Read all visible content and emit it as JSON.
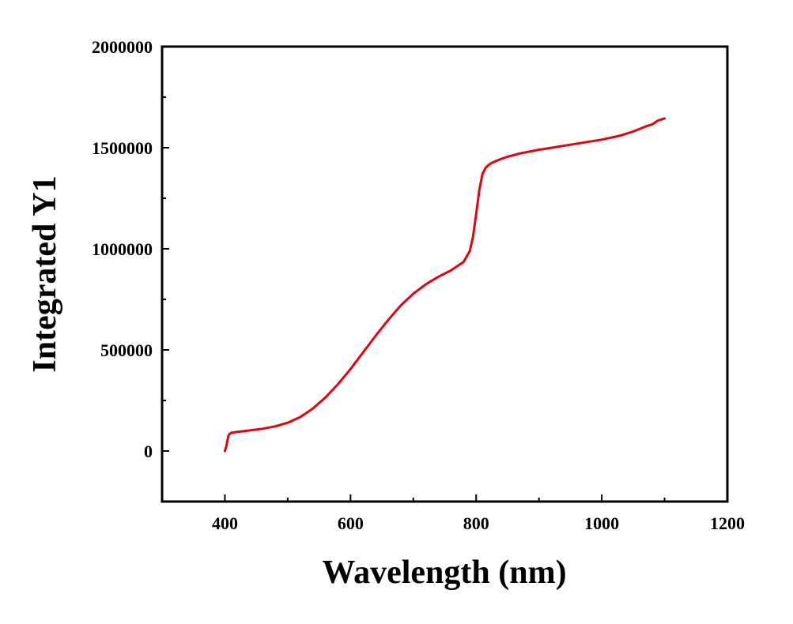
{
  "chart_data": {
    "type": "line",
    "title": "",
    "xlabel": "Wavelength (nm)",
    "ylabel": "Integrated Y1",
    "xlim": [
      300,
      1200
    ],
    "ylim": [
      -250000,
      2000000
    ],
    "x_ticks": [
      400,
      600,
      800,
      1000,
      1200
    ],
    "x_tick_labels": [
      "400",
      "600",
      "800",
      "1000",
      "1200"
    ],
    "x_minor_ticks": [
      300,
      500,
      700,
      900,
      1100
    ],
    "y_ticks": [
      0,
      500000,
      1000000,
      1500000,
      2000000
    ],
    "y_tick_labels": [
      "0",
      "500000",
      "1000000",
      "1500000",
      "2000000"
    ],
    "y_minor_ticks": [
      250000,
      750000,
      1250000,
      1750000
    ],
    "grid": false,
    "legend": "none",
    "series": [
      {
        "color": "#e8000b",
        "x": [
          400,
          402,
          404,
          406,
          410,
          420,
          440,
          460,
          480,
          500,
          520,
          540,
          560,
          580,
          600,
          620,
          640,
          660,
          680,
          700,
          720,
          740,
          760,
          780,
          790,
          795,
          800,
          805,
          810,
          815,
          820,
          825,
          830,
          840,
          850,
          870,
          900,
          950,
          1000,
          1030,
          1050,
          1070,
          1080,
          1090,
          1100
        ],
        "y": [
          0,
          20000,
          50000,
          80000,
          90000,
          95000,
          102000,
          110000,
          122000,
          140000,
          168000,
          210000,
          265000,
          330000,
          405000,
          488000,
          570000,
          648000,
          720000,
          778000,
          825000,
          862000,
          893000,
          935000,
          990000,
          1060000,
          1170000,
          1290000,
          1370000,
          1400000,
          1415000,
          1425000,
          1432000,
          1445000,
          1455000,
          1472000,
          1490000,
          1515000,
          1540000,
          1560000,
          1580000,
          1605000,
          1615000,
          1635000,
          1645000
        ]
      }
    ]
  }
}
